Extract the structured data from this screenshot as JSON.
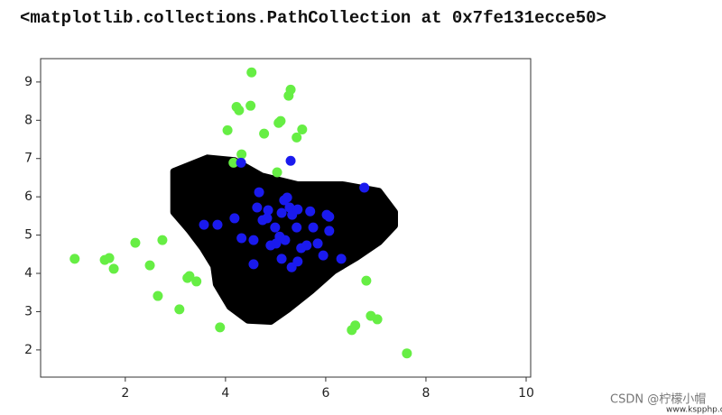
{
  "output_text": "<matplotlib.collections.PathCollection at 0x7fe131ecce50>",
  "watermark": {
    "text": "CSDN @柠檬小帽",
    "site": "www.kspphp.online"
  },
  "chart_data": {
    "type": "scatter",
    "xlim": [
      0.31,
      10.09
    ],
    "ylim": [
      1.29,
      9.61
    ],
    "xticks": [
      2,
      4,
      6,
      8,
      10
    ],
    "yticks": [
      2,
      3,
      4,
      5,
      6,
      7,
      8,
      9
    ],
    "region": {
      "color": "#000000",
      "x": [
        2.97,
        3.64,
        4.18,
        4.72,
        5.44,
        6.34,
        7.06,
        7.37,
        7.37,
        7.06,
        6.61,
        6.16,
        5.71,
        5.26,
        4.9,
        4.45,
        4.09,
        3.82,
        3.77,
        3.55,
        3.28,
        2.97
      ],
      "y": [
        6.66,
        7.01,
        6.94,
        6.54,
        6.31,
        6.31,
        6.14,
        5.6,
        5.25,
        4.82,
        4.42,
        4.07,
        3.55,
        3.08,
        2.75,
        2.78,
        3.13,
        3.72,
        4.19,
        4.66,
        5.13,
        5.6
      ]
    },
    "series": [
      {
        "color": "#66ee44",
        "x": [
          4.52,
          5.3,
          5.26,
          4.22,
          4.27,
          4.5,
          5.1,
          5.06,
          5.53,
          5.42,
          4.04,
          4.77,
          4.32,
          4.16,
          5.03,
          0.99,
          1.59,
          1.68,
          1.77,
          2.2,
          2.74,
          2.49,
          3.28,
          3.24,
          3.42,
          2.65,
          3.08,
          3.89,
          6.81,
          6.9,
          7.03,
          6.59,
          6.52,
          7.62
        ],
        "values": [
          9.25,
          8.8,
          8.64,
          8.35,
          8.26,
          8.38,
          7.98,
          7.93,
          7.76,
          7.55,
          7.74,
          7.65,
          7.11,
          6.89,
          6.64,
          4.38,
          4.35,
          4.4,
          4.12,
          4.8,
          4.87,
          4.21,
          3.93,
          3.88,
          3.79,
          3.41,
          3.06,
          2.59,
          3.81,
          2.89,
          2.8,
          2.64,
          2.52,
          1.91
        ]
      },
      {
        "color": "#1a1aee",
        "x": [
          5.3,
          4.31,
          6.77,
          4.67,
          5.17,
          5.23,
          4.63,
          4.85,
          5.12,
          5.28,
          5.33,
          5.44,
          5.69,
          6.02,
          6.07,
          4.18,
          4.74,
          4.83,
          3.57,
          3.84,
          4.99,
          5.42,
          5.75,
          6.07,
          5.08,
          4.56,
          4.32,
          5.19,
          5.01,
          4.9,
          5.62,
          5.51,
          5.84,
          5.95,
          5.12,
          5.44,
          5.32,
          6.31,
          4.56
        ],
        "values": [
          6.94,
          6.89,
          6.24,
          6.12,
          5.91,
          5.98,
          5.72,
          5.65,
          5.58,
          5.72,
          5.53,
          5.67,
          5.62,
          5.53,
          5.48,
          5.44,
          5.39,
          5.44,
          5.27,
          5.27,
          5.2,
          5.2,
          5.2,
          5.11,
          4.96,
          4.87,
          4.92,
          4.87,
          4.78,
          4.73,
          4.73,
          4.66,
          4.78,
          4.47,
          4.38,
          4.31,
          4.16,
          4.38,
          4.24
        ]
      }
    ]
  }
}
